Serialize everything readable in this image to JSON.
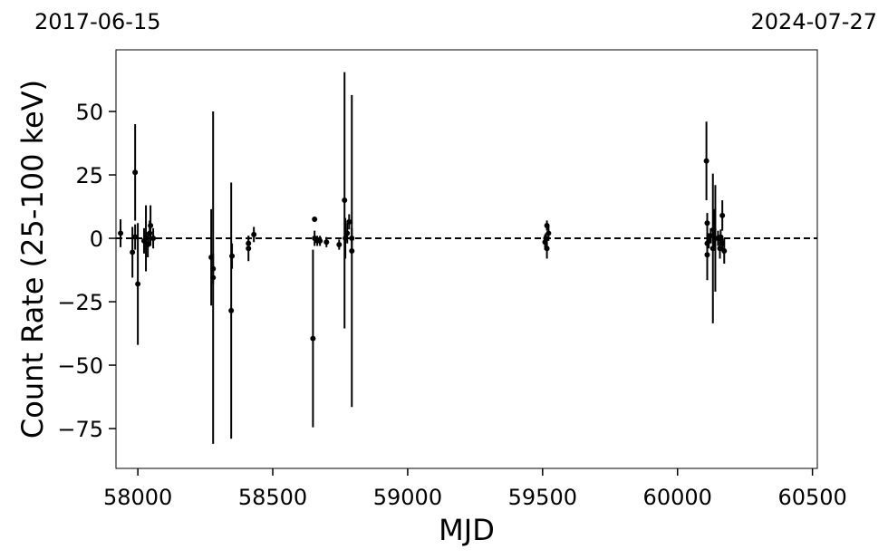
{
  "chart_data": {
    "type": "errorbar",
    "top_left_label": "2017-06-15",
    "top_right_label": "2024-07-27",
    "xlabel": "MJD",
    "ylabel": "Count Rate (25-100 keV)",
    "color": "#000000",
    "hline": 0,
    "x": [
      57936,
      57980,
      57990,
      57990,
      58000,
      58023,
      58030,
      58037,
      58044,
      58047,
      58057,
      58272,
      58279,
      58279,
      58346,
      58349,
      58410,
      58410,
      58430,
      58649,
      58655,
      58655,
      58665,
      58675,
      58699,
      58746,
      58766,
      58769,
      58776,
      58783,
      58793,
      58793,
      59509,
      59512,
      59516,
      59516,
      59522,
      60107,
      60110,
      60110,
      60110,
      60116,
      60123,
      60131,
      60134,
      60140,
      60150,
      60157,
      60160,
      60166,
      60173,
      60166
    ],
    "values": [
      2,
      -5.5,
      26,
      0.5,
      -18,
      -1,
      0,
      -2.5,
      2,
      5,
      0,
      -7.5,
      -15.5,
      -12,
      -28.5,
      -7,
      -4,
      -2,
      1.5,
      -39.5,
      7.5,
      0,
      -1,
      -1,
      -1.5,
      -2.5,
      15,
      0,
      2,
      6.5,
      -5,
      0,
      -1.5,
      0,
      -4,
      5,
      2,
      30.5,
      6,
      -6.5,
      -2,
      -1,
      1,
      -4,
      3.5,
      0,
      0,
      -4,
      0.5,
      -2,
      -5,
      9
    ],
    "errors": [
      5.5,
      10,
      19,
      5,
      24,
      5,
      13,
      5,
      5,
      8,
      4,
      19,
      65.5,
      6,
      50.5,
      5,
      5,
      3,
      3,
      35,
      1,
      3,
      2,
      2,
      2,
      2,
      50.5,
      8,
      4,
      3,
      61.5,
      4,
      3,
      2,
      4,
      2,
      3,
      15.5,
      4,
      10,
      3,
      3,
      3,
      29.5,
      8,
      21,
      3,
      4,
      3,
      3,
      5,
      6
    ],
    "xlim": [
      57919,
      60518
    ],
    "ylim": [
      -90.7,
      74.3
    ],
    "xticks": [
      58000,
      58500,
      59000,
      59500,
      60000,
      60500
    ],
    "yticks": [
      {
        "value": -75,
        "label": "−75"
      },
      {
        "value": -50,
        "label": "−50"
      },
      {
        "value": -25,
        "label": "−25"
      },
      0,
      25,
      50
    ]
  }
}
